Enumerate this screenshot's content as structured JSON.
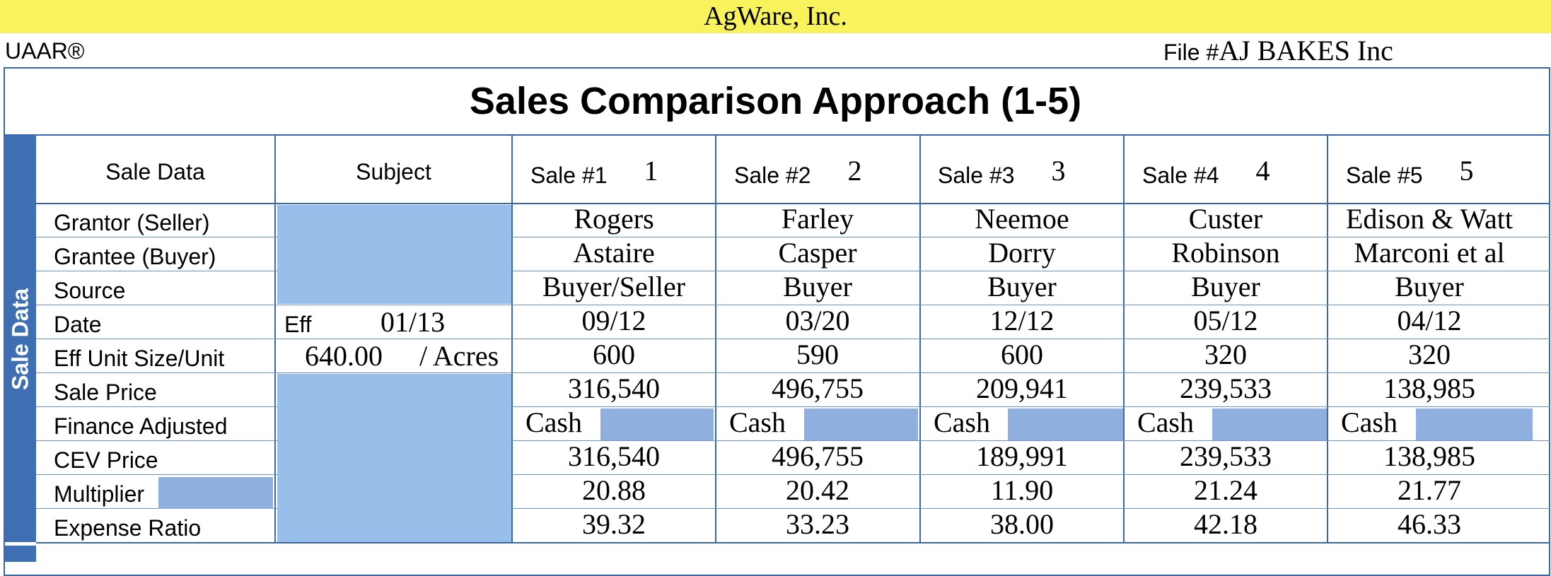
{
  "header": {
    "company": "AgWare, Inc.",
    "form_code": "UAAR®",
    "file_label": "File #",
    "file_value": "AJ BAKES Inc"
  },
  "title": "Sales Comparison Approach (1-5)",
  "sidebar_label": "Sale Data",
  "columns": {
    "label_header": "Sale Data",
    "subject_header": "Subject",
    "sales": [
      {
        "label": "Sale #1",
        "num": "1"
      },
      {
        "label": "Sale #2",
        "num": "2"
      },
      {
        "label": "Sale #3",
        "num": "3"
      },
      {
        "label": "Sale #4",
        "num": "4"
      },
      {
        "label": "Sale #5",
        "num": "5"
      }
    ]
  },
  "row_labels": [
    "Grantor (Seller)",
    "Grantee (Buyer)",
    "Source",
    "Date",
    "Eff Unit Size/Unit",
    "Sale Price",
    "Finance Adjusted",
    "CEV Price",
    "Multiplier",
    "Expense Ratio"
  ],
  "subject": {
    "date_prefix": "Eff",
    "date": "01/13",
    "size": "640.00",
    "unit": "/ Acres"
  },
  "sales": [
    {
      "grantor": "Rogers",
      "grantee": "Astaire",
      "source": "Buyer/Seller",
      "date": "09/12",
      "size": "600",
      "price": "316,540",
      "finance": "Cash",
      "cev": "316,540",
      "multiplier": "20.88",
      "expense": "39.32"
    },
    {
      "grantor": "Farley",
      "grantee": "Casper",
      "source": "Buyer",
      "date": "03/20",
      "size": "590",
      "price": "496,755",
      "finance": "Cash",
      "cev": "496,755",
      "multiplier": "20.42",
      "expense": "33.23"
    },
    {
      "grantor": "Neemoe",
      "grantee": "Dorry",
      "source": "Buyer",
      "date": "12/12",
      "size": "600",
      "price": "209,941",
      "finance": "Cash",
      "cev": "189,991",
      "multiplier": "11.90",
      "expense": "38.00"
    },
    {
      "grantor": "Custer",
      "grantee": "Robinson",
      "source": "Buyer",
      "date": "05/12",
      "size": "320",
      "price": "239,533",
      "finance": "Cash",
      "cev": "239,533",
      "multiplier": "21.24",
      "expense": "42.18"
    },
    {
      "grantor": "Edison & Watt",
      "grantee": "Marconi et al",
      "source": "Buyer",
      "date": "04/12",
      "size": "320",
      "price": "138,985",
      "finance": "Cash",
      "cev": "138,985",
      "multiplier": "21.77",
      "expense": "46.33"
    }
  ],
  "colors": {
    "header_bar": "#f8f35b",
    "accent": "#3f6fb3",
    "input_fill": "#97bfe9"
  }
}
